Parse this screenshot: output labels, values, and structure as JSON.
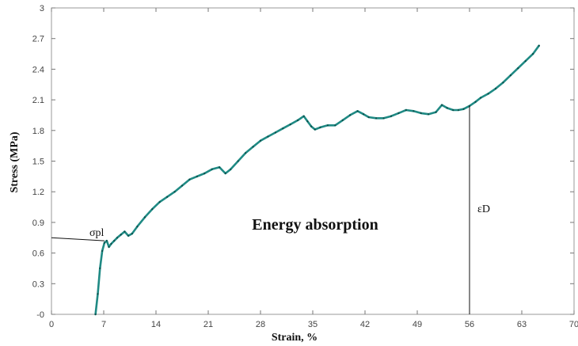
{
  "chart_data": {
    "type": "line",
    "xlabel": "Strain, %",
    "ylabel": "Stress (MPa)",
    "xlim": [
      0,
      70
    ],
    "ylim": [
      0,
      3
    ],
    "xticks": [
      "0",
      "7",
      "14",
      "21",
      "28",
      "35",
      "42",
      "49",
      "56",
      "63",
      "70"
    ],
    "yticks": [
      "-0",
      "0.3",
      "0.6",
      "0.9",
      "1.2",
      "1.5",
      "1.8",
      "2.1",
      "2.4",
      "2.7",
      "3"
    ],
    "grid": false,
    "series": [
      {
        "color": "#1f8a84",
        "x": [
          5.9,
          6.2,
          6.5,
          6.8,
          7.1,
          7.4,
          7.7,
          8.0,
          8.4,
          8.8,
          9.3,
          9.8,
          10.3,
          10.8,
          11.5,
          12.5,
          13.5,
          14.5,
          15.5,
          16.5,
          17.5,
          18.5,
          19.5,
          20.5,
          21.5,
          22.5,
          23.3,
          24.0,
          25.0,
          26.0,
          27.0,
          28.0,
          29.0,
          30.0,
          31.0,
          32.0,
          33.0,
          33.8,
          34.3,
          34.8,
          35.3,
          36.0,
          37.0,
          38.0,
          39.0,
          40.0,
          41.0,
          41.8,
          42.5,
          43.5,
          44.5,
          45.5,
          46.5,
          47.5,
          48.5,
          49.5,
          50.5,
          51.5,
          52.3,
          53.0,
          53.8,
          54.5,
          55.2,
          56.0,
          56.8,
          57.5,
          58.5,
          59.5,
          60.5,
          61.5,
          62.5,
          63.5,
          64.5,
          65.3
        ],
        "y": [
          0.0,
          0.2,
          0.45,
          0.62,
          0.7,
          0.72,
          0.66,
          0.69,
          0.72,
          0.75,
          0.78,
          0.81,
          0.77,
          0.79,
          0.86,
          0.95,
          1.03,
          1.1,
          1.15,
          1.2,
          1.26,
          1.32,
          1.35,
          1.38,
          1.42,
          1.44,
          1.38,
          1.42,
          1.5,
          1.58,
          1.64,
          1.7,
          1.74,
          1.78,
          1.82,
          1.86,
          1.9,
          1.94,
          1.89,
          1.84,
          1.81,
          1.83,
          1.85,
          1.85,
          1.9,
          1.95,
          1.99,
          1.96,
          1.93,
          1.92,
          1.92,
          1.94,
          1.97,
          2.0,
          1.99,
          1.97,
          1.96,
          1.98,
          2.05,
          2.02,
          2.0,
          2.0,
          2.01,
          2.04,
          2.08,
          2.12,
          2.16,
          2.21,
          2.27,
          2.34,
          2.41,
          2.48,
          2.55,
          2.63
        ]
      }
    ],
    "annotations": {
      "sigma_pl": "σpl",
      "eps_d": "εD",
      "region": "Energy absorption"
    },
    "reference_points": {
      "sigma_pl_value": 0.72,
      "sigma_pl_strain": 7.1,
      "eps_d_strain": 56.0,
      "eps_d_stress": 2.04
    }
  }
}
